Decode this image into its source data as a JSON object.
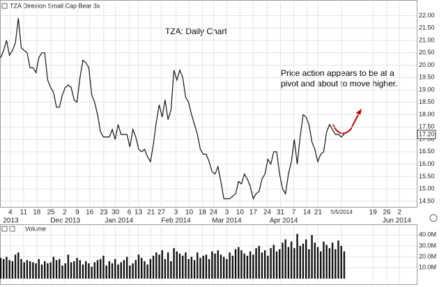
{
  "chart_data": [
    {
      "type": "line",
      "title": "TZA Direxion Small Cap Bear 3x",
      "annotations": [
        "TZA:  Daily Chart",
        "Price action appears to be at a",
        "pivot and about to move higher."
      ],
      "series": [
        {
          "name": "TZA",
          "color": "#111111",
          "values": [
            20.3,
            20.6,
            21.0,
            20.4,
            20.6,
            20.9,
            21.9,
            20.7,
            20.6,
            20.5,
            19.9,
            19.9,
            19.7,
            20.3,
            20.5,
            20.5,
            19.4,
            19.1,
            18.9,
            18.3,
            18.3,
            18.8,
            19.1,
            19.2,
            19.1,
            18.6,
            18.5,
            19.5,
            20.2,
            20.1,
            19.9,
            18.8,
            18.5,
            18.0,
            17.3,
            17.1,
            17.1,
            17.1,
            17.4,
            17.0,
            17.6,
            17.2,
            17.2,
            17.2,
            16.7,
            17.4,
            17.1,
            16.6,
            16.5,
            16.6,
            16.3,
            16.1,
            16.8,
            17.7,
            18.4,
            17.9,
            18.6,
            17.8,
            18.2,
            19.8,
            19.4,
            19.8,
            19.5,
            18.7,
            18.5,
            18.0,
            17.6,
            17.2,
            16.6,
            16.4,
            16.4,
            16.1,
            15.7,
            15.6,
            15.9,
            15.3,
            14.6,
            14.6,
            14.6,
            14.7,
            14.8,
            15.3,
            15.2,
            15.6,
            15.4,
            15.1,
            14.6,
            14.8,
            14.9,
            15.4,
            15.6,
            16.2,
            16.0,
            16.5,
            16.5,
            15.6,
            15.0,
            14.8,
            15.6,
            16.1,
            17.0,
            16.0,
            17.1,
            18.0,
            17.9,
            17.6,
            16.9,
            16.6,
            16.1,
            16.4,
            16.5,
            17.3,
            17.6,
            17.4,
            17.2,
            17.2,
            17.1,
            17.2
          ]
        }
      ],
      "last_price": {
        "value": 17.2,
        "label": "17.20"
      },
      "xlim": [
        0,
        141.7
      ],
      "xticks": [
        {
          "value": 3.3,
          "label": "4"
        },
        {
          "value": 7.8,
          "label": "11"
        },
        {
          "value": 12.3,
          "label": "18"
        },
        {
          "value": 17.1,
          "label": "25"
        },
        {
          "value": 21.8,
          "label": "2"
        },
        {
          "value": 26.1,
          "label": "9"
        },
        {
          "value": 30.3,
          "label": "16"
        },
        {
          "value": 35.1,
          "label": "23"
        },
        {
          "value": 39.1,
          "label": "30"
        },
        {
          "value": 43.8,
          "label": "6"
        },
        {
          "value": 46.9,
          "label": "13"
        },
        {
          "value": 51.2,
          "label": "21"
        },
        {
          "value": 54.7,
          "label": "27"
        },
        {
          "value": 59.7,
          "label": "3"
        },
        {
          "value": 64.2,
          "label": "10"
        },
        {
          "value": 68.7,
          "label": "18"
        },
        {
          "value": 72.5,
          "label": "24"
        },
        {
          "value": 77,
          "label": "3"
        },
        {
          "value": 81.5,
          "label": "10"
        },
        {
          "value": 86,
          "label": "17"
        },
        {
          "value": 90.8,
          "label": "24"
        },
        {
          "value": 95.3,
          "label": "31"
        },
        {
          "value": 99.8,
          "label": "7"
        },
        {
          "value": 104.3,
          "label": "14"
        },
        {
          "value": 108.1,
          "label": "21"
        },
        {
          "value": 116.1,
          "label": "5/5/2014"
        },
        {
          "value": 126.8,
          "label": "19"
        },
        {
          "value": 131.5,
          "label": "26"
        },
        {
          "value": 135.8,
          "label": "2"
        }
      ],
      "month_labels": [
        {
          "value": 0.8,
          "label": "2013"
        },
        {
          "value": 22,
          "label": "Dec 2013"
        },
        {
          "value": 40.3,
          "label": "Jan 2014"
        },
        {
          "value": 59.7,
          "label": "Feb 2014"
        },
        {
          "value": 77,
          "label": "Mar 2014"
        },
        {
          "value": 96.4,
          "label": "Apr 2014"
        },
        {
          "value": 139.8,
          "label": "Jun 2014"
        }
      ],
      "ylim": [
        14.3,
        22.55
      ],
      "yticks": [
        {
          "value": 22,
          "label": "22.00"
        },
        {
          "value": 21.5,
          "label": "21.50"
        },
        {
          "value": 21,
          "label": "21.00"
        },
        {
          "value": 20.5,
          "label": "20.50"
        },
        {
          "value": 20,
          "label": "20.00"
        },
        {
          "value": 19.5,
          "label": "19.50"
        },
        {
          "value": 19,
          "label": "19.00"
        },
        {
          "value": 18.5,
          "label": "18.50"
        },
        {
          "value": 18,
          "label": "18.00"
        },
        {
          "value": 17.5,
          "label": "17.50"
        },
        {
          "value": 17,
          "label": "17.00"
        },
        {
          "value": 16.5,
          "label": "16.50"
        },
        {
          "value": 16,
          "label": "16.00"
        },
        {
          "value": 15.5,
          "label": "15.50"
        },
        {
          "value": 15,
          "label": "15.00"
        },
        {
          "value": 14.5,
          "label": "14.50"
        }
      ],
      "grid": true
    },
    {
      "type": "bar",
      "title": "Volume",
      "color": "#111111",
      "values": [
        19,
        18,
        20,
        17,
        16,
        22,
        24,
        18,
        15,
        17,
        16,
        15,
        14,
        18,
        13,
        16,
        14,
        15,
        20,
        17,
        18,
        12,
        14,
        22,
        15,
        16,
        19,
        17,
        13,
        16,
        14,
        11,
        15,
        17,
        18,
        21,
        12,
        16,
        14,
        18,
        13,
        15,
        17,
        20,
        12,
        14,
        17,
        22,
        19,
        16,
        13,
        18,
        21,
        24,
        22,
        26,
        18,
        24,
        16,
        28,
        25,
        23,
        21,
        24,
        18,
        20,
        17,
        24,
        19,
        21,
        22,
        18,
        25,
        23,
        26,
        22,
        20,
        18,
        24,
        21,
        27,
        29,
        26,
        23,
        21,
        25,
        22,
        28,
        30,
        24,
        26,
        21,
        28,
        31,
        25,
        27,
        33,
        36,
        29,
        34,
        28,
        41,
        30,
        32,
        36,
        27,
        40,
        33,
        29,
        25,
        34,
        31,
        28,
        33,
        27,
        35,
        30,
        25
      ],
      "xlim": [
        0,
        141.7
      ],
      "ylim": [
        0,
        44.7
      ],
      "yticks": [
        {
          "value": 40,
          "label": "40.0M"
        },
        {
          "value": 30,
          "label": "30.0M"
        },
        {
          "value": 20,
          "label": "20.0M"
        },
        {
          "value": 10,
          "label": "10.0M"
        }
      ],
      "grid": true
    }
  ]
}
